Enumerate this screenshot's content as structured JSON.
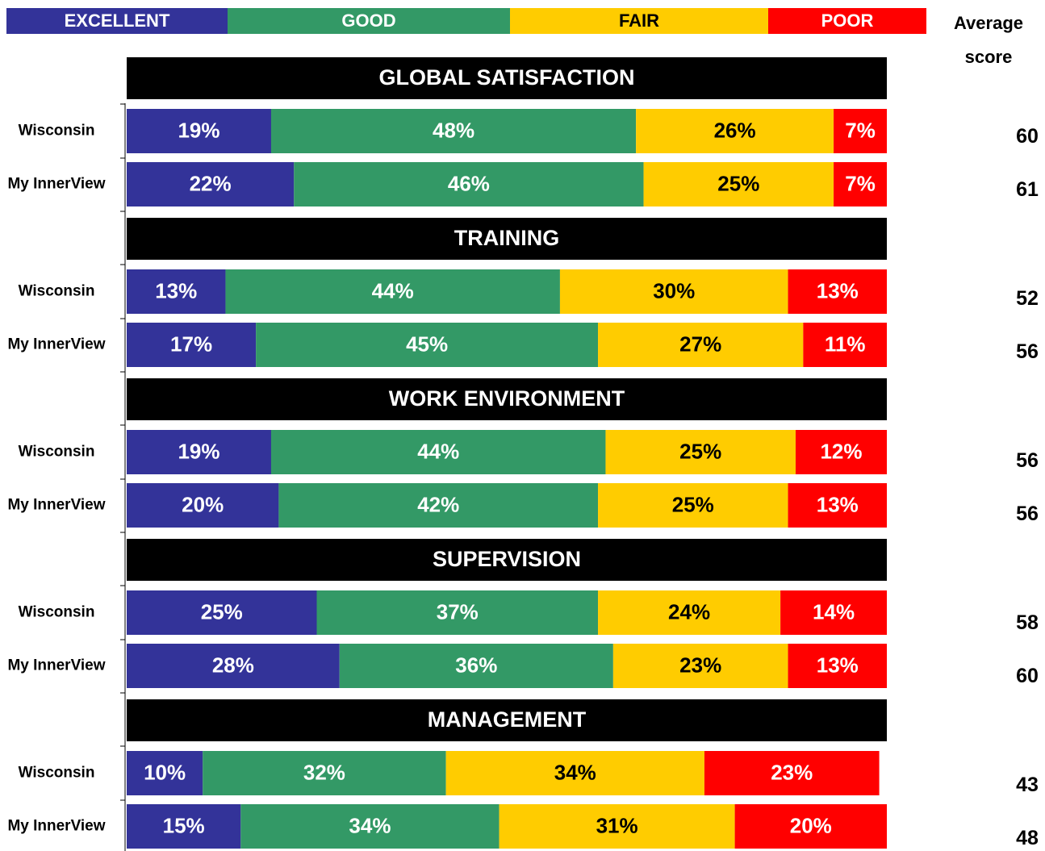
{
  "chart_data": {
    "type": "stacked-bar",
    "xlim": [
      0,
      100
    ],
    "sections": [
      "GLOBAL SATISFACTION",
      "TRAINING",
      "WORK ENVIRONMENT",
      "SUPERVISION",
      "MANAGEMENT"
    ],
    "categories": [
      "Wisconsin",
      "My InnerView",
      "Wisconsin",
      "My InnerView",
      "Wisconsin",
      "My InnerView",
      "Wisconsin",
      "My InnerView",
      "Wisconsin",
      "My InnerView"
    ],
    "series": [
      {
        "name": "EXCELLENT",
        "color": "#333399",
        "label_color": "#ffffff",
        "values": [
          19,
          22,
          13,
          17,
          19,
          20,
          25,
          28,
          10,
          15
        ],
        "value_labels": [
          "19%",
          "22%",
          "13%",
          "17%",
          "19%",
          "20%",
          "25%",
          "28%",
          "10%",
          "15%"
        ]
      },
      {
        "name": "GOOD",
        "color": "#339966",
        "label_color": "#ffffff",
        "values": [
          48,
          46,
          44,
          45,
          44,
          42,
          37,
          36,
          32,
          34
        ],
        "value_labels": [
          "48%",
          "46%",
          "44%",
          "45%",
          "44%",
          "42%",
          "37%",
          "36%",
          "32%",
          "34%"
        ]
      },
      {
        "name": "FAIR",
        "color": "#ffcc00",
        "label_color": "#000000",
        "values": [
          26,
          25,
          30,
          27,
          25,
          25,
          24,
          23,
          34,
          31
        ],
        "value_labels": [
          "26%",
          "25%",
          "30%",
          "27%",
          "25%",
          "25%",
          "24%",
          "23%",
          "34%",
          "31%"
        ]
      },
      {
        "name": "POOR",
        "color": "#ff0000",
        "label_color": "#ffffff",
        "values": [
          7,
          7,
          13,
          11,
          12,
          13,
          14,
          13,
          23,
          20
        ],
        "value_labels": [
          "7%",
          "7%",
          "13%",
          "11%",
          "12%",
          "13%",
          "14%",
          "13%",
          "23%",
          "20%"
        ]
      }
    ],
    "average_score_label": "Average score",
    "average_scores": [
      60,
      61,
      52,
      56,
      56,
      56,
      58,
      60,
      43,
      48
    ]
  }
}
